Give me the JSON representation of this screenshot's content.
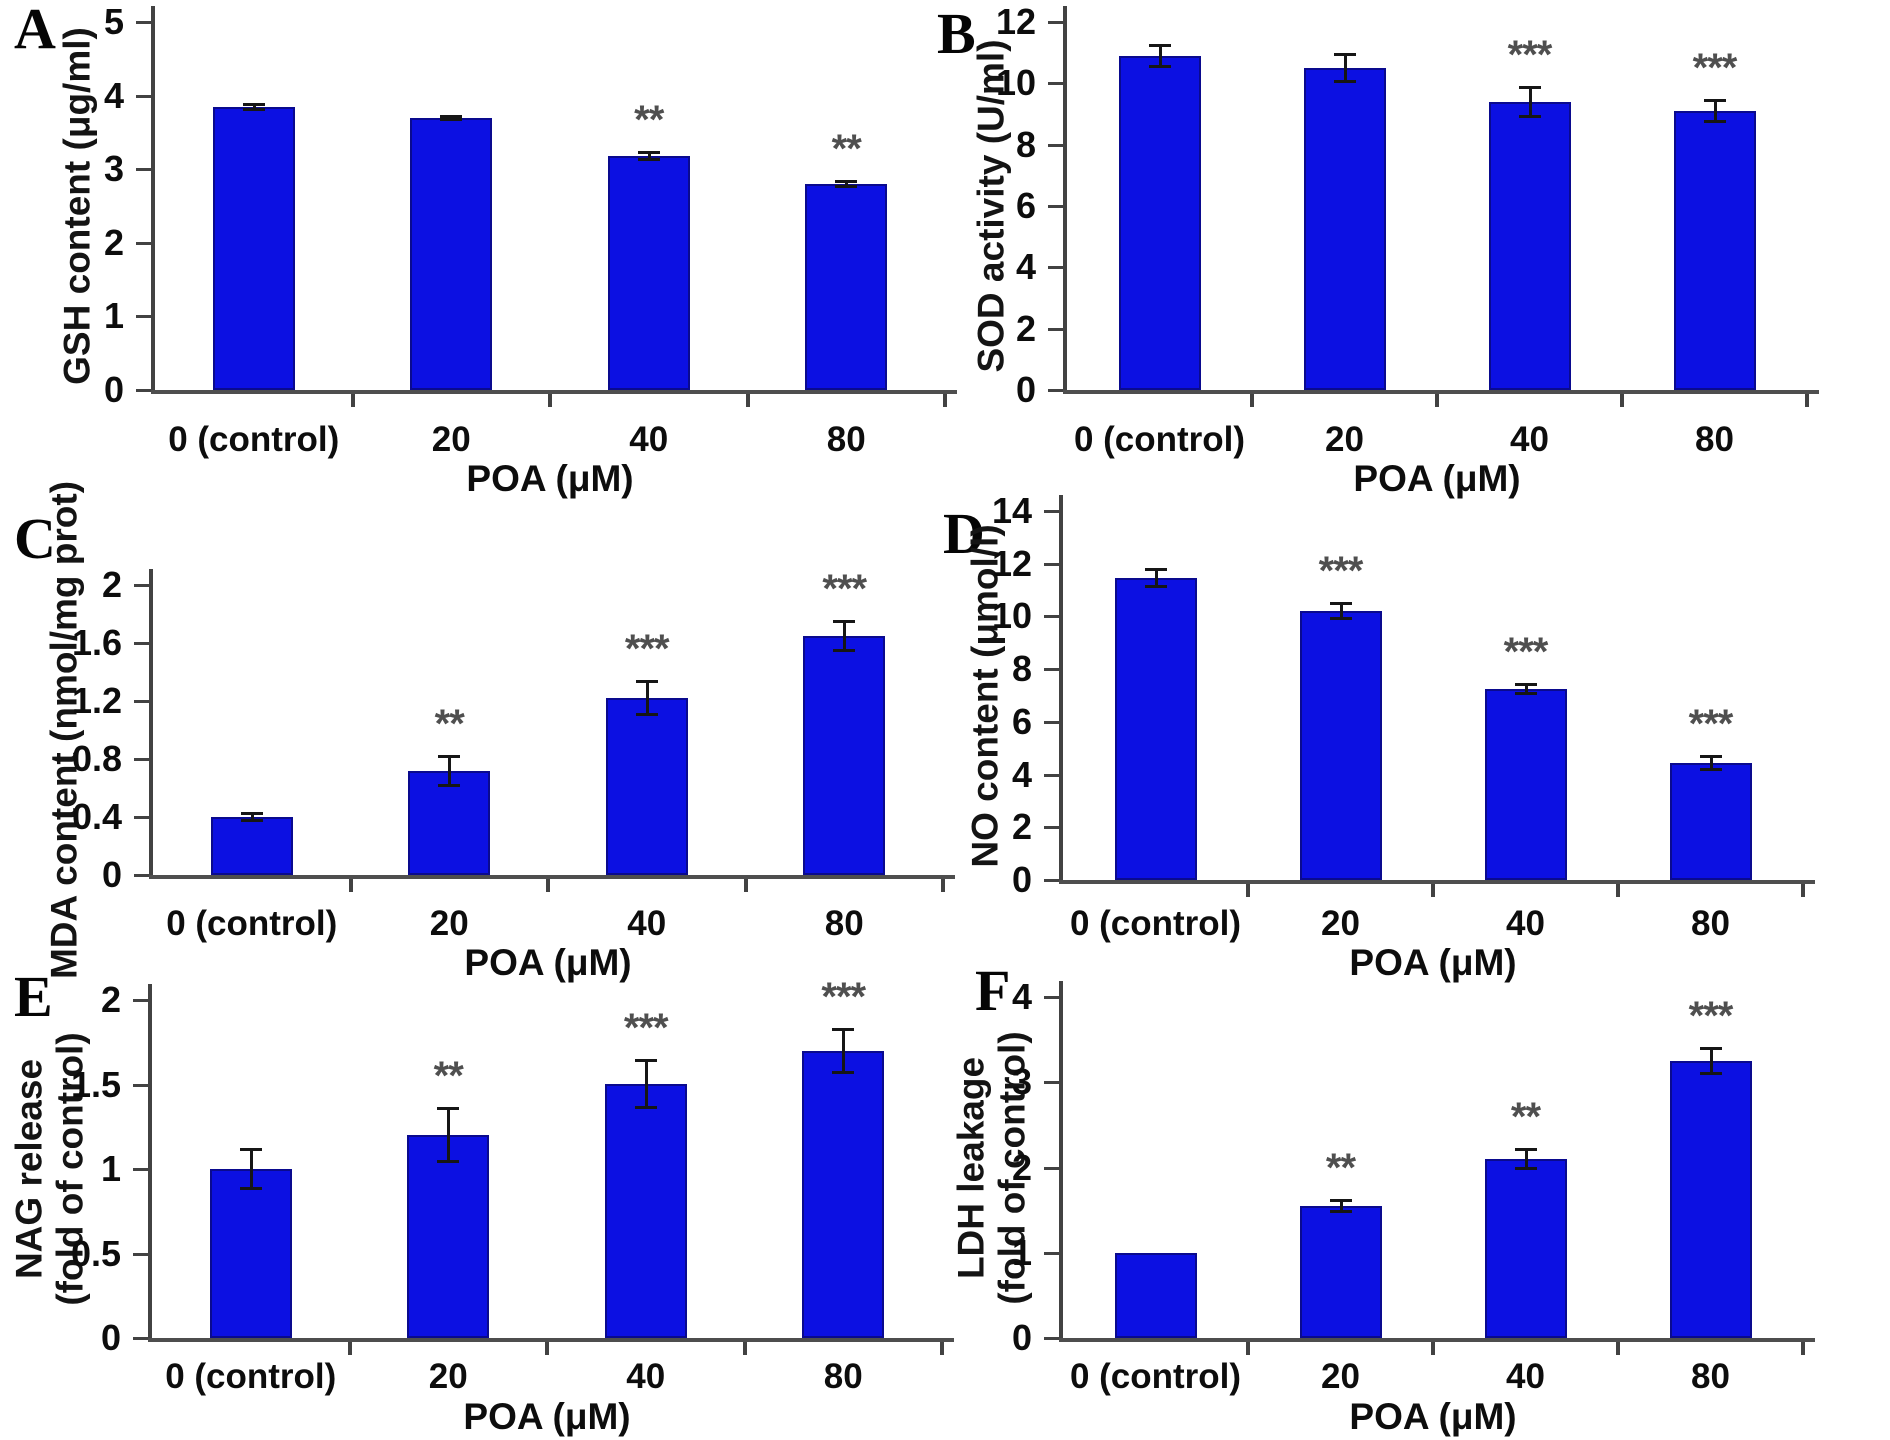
{
  "figure": {
    "description": "Six-panel bar chart figure, effects of POA concentration",
    "bar_fill": "#0c10e2",
    "bar_edge": "#0a0a8e",
    "axis_color": "#424242",
    "star_color": "#4f4f4f"
  },
  "chart_data": [
    {
      "panel": "A",
      "type": "bar",
      "ylabel_lines": [
        "GSH content (μg/ml)"
      ],
      "xlabel": "POA (μM)",
      "categories": [
        "0 (control)",
        "20",
        "40",
        "80"
      ],
      "values": [
        3.84,
        3.7,
        3.18,
        2.8
      ],
      "errors": [
        0.04,
        0.03,
        0.05,
        0.04
      ],
      "significance": [
        "",
        "",
        "**",
        "**"
      ],
      "yticks": [
        "0",
        "1",
        "2",
        "3",
        "4",
        "5"
      ],
      "ylim": [
        0,
        5
      ],
      "grid": false,
      "legend": "none"
    },
    {
      "panel": "B",
      "type": "bar",
      "ylabel_lines": [
        "SOD activity (U/ml)"
      ],
      "xlabel": "POA (μM)",
      "categories": [
        "0 (control)",
        "20",
        "40",
        "80"
      ],
      "values": [
        10.9,
        10.5,
        9.4,
        9.1
      ],
      "errors": [
        0.35,
        0.45,
        0.5,
        0.35
      ],
      "significance": [
        "",
        "",
        "***",
        "***"
      ],
      "yticks": [
        "0",
        "2",
        "4",
        "6",
        "8",
        "10",
        "12"
      ],
      "ylim": [
        0,
        12
      ],
      "grid": false,
      "legend": "none"
    },
    {
      "panel": "C",
      "type": "bar",
      "ylabel_lines": [
        "MDA content (nmol/mg prot)"
      ],
      "xlabel": "POA (μM)",
      "categories": [
        "0 (control)",
        "20",
        "40",
        "80"
      ],
      "values": [
        0.4,
        0.72,
        1.22,
        1.65
      ],
      "errors": [
        0.03,
        0.1,
        0.12,
        0.1
      ],
      "significance": [
        "",
        "**",
        "***",
        "***"
      ],
      "yticks": [
        "0",
        "0.4",
        "0.8",
        "1.2",
        "1.6",
        "2"
      ],
      "ylim": [
        0,
        2
      ],
      "grid": false,
      "legend": "none"
    },
    {
      "panel": "D",
      "type": "bar",
      "ylabel_lines": [
        "NO content (μmol/l)"
      ],
      "xlabel": "POA (μM)",
      "categories": [
        "0 (control)",
        "20",
        "40",
        "80"
      ],
      "values": [
        11.45,
        10.2,
        7.25,
        4.45
      ],
      "errors": [
        0.33,
        0.3,
        0.2,
        0.25
      ],
      "significance": [
        "",
        "***",
        "***",
        "***"
      ],
      "yticks": [
        "0",
        "2",
        "4",
        "6",
        "8",
        "10",
        "12",
        "14"
      ],
      "ylim": [
        0,
        14
      ],
      "grid": false,
      "legend": "none"
    },
    {
      "panel": "E",
      "type": "bar",
      "ylabel_lines": [
        "NAG release",
        "(fold of control)"
      ],
      "xlabel": "POA (μM)",
      "categories": [
        "0 (control)",
        "20",
        "40",
        "80"
      ],
      "values": [
        1.0,
        1.2,
        1.5,
        1.7
      ],
      "errors": [
        0.12,
        0.16,
        0.14,
        0.13
      ],
      "significance": [
        "",
        "**",
        "***",
        "***"
      ],
      "yticks": [
        "0",
        "0.5",
        "1",
        "1.5",
        "2"
      ],
      "ylim": [
        0,
        2
      ],
      "grid": false,
      "legend": "none"
    },
    {
      "panel": "F",
      "type": "bar",
      "ylabel_lines": [
        "LDH leakage",
        "(fold of control)"
      ],
      "xlabel": "POA (μM)",
      "categories": [
        "0 (control)",
        "20",
        "40",
        "80"
      ],
      "values": [
        1.0,
        1.55,
        2.1,
        3.25
      ],
      "errors": [
        0,
        0.07,
        0.12,
        0.15
      ],
      "significance": [
        "",
        "**",
        "**",
        "***"
      ],
      "yticks": [
        "0",
        "1",
        "2",
        "3",
        "4"
      ],
      "ylim": [
        0,
        4
      ],
      "grid": false,
      "legend": "none"
    }
  ]
}
